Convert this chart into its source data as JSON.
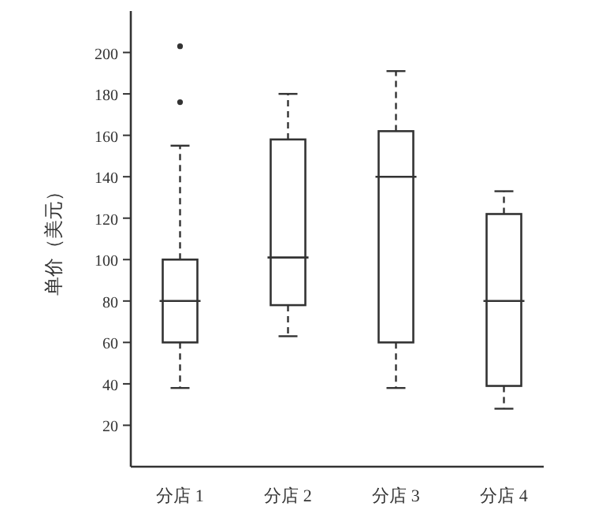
{
  "chart_data": {
    "type": "box",
    "ylabel": "单价（美元）",
    "categories": [
      "分店 1",
      "分店 2",
      "分店 3",
      "分店 4"
    ],
    "ylim": [
      0,
      220
    ],
    "yticks": [
      20,
      40,
      60,
      80,
      100,
      120,
      140,
      160,
      180,
      200
    ],
    "color": "#333333",
    "boxes": [
      {
        "low": 38,
        "q1": 60,
        "median": 80,
        "q3": 100,
        "high": 155,
        "outliers": [
          176,
          203
        ]
      },
      {
        "low": 63,
        "q1": 78,
        "median": 101,
        "q3": 158,
        "high": 180
      },
      {
        "low": 38,
        "q1": 60,
        "median": 140,
        "q3": 162,
        "high": 191
      },
      {
        "low": 28,
        "q1": 39,
        "median": 80,
        "q3": 122,
        "high": 133
      }
    ]
  }
}
